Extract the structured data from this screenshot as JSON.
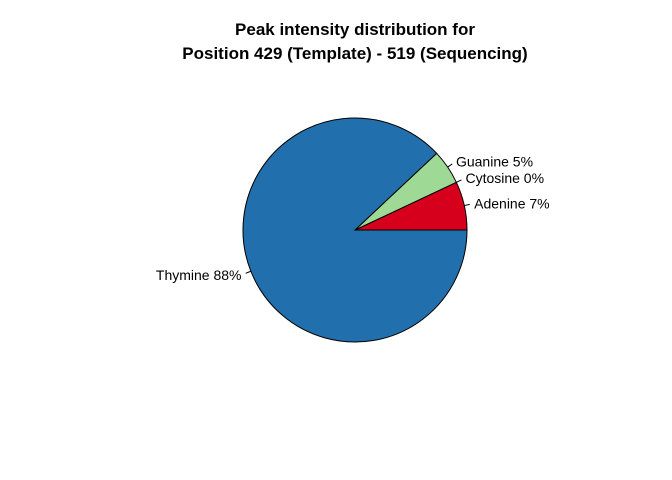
{
  "chart_data": {
    "type": "pie",
    "title_lines": [
      "Peak intensity distribution for",
      "Position 429 (Template) - 519 (Sequencing)"
    ],
    "slices": [
      {
        "name": "Adenine",
        "value": 7,
        "label": "Adenine 7%",
        "color": "#d7001c"
      },
      {
        "name": "Cytosine",
        "value": 0,
        "label": "Cytosine 0%",
        "color": "#000000"
      },
      {
        "name": "Guanine",
        "value": 5,
        "label": "Guanine 5%",
        "color": "#9ed996"
      },
      {
        "name": "Thymine",
        "value": 88,
        "label": "Thymine 88%",
        "color": "#216fad"
      }
    ],
    "start_angle_deg": 0,
    "direction": "counterclockwise",
    "legend": "none"
  }
}
